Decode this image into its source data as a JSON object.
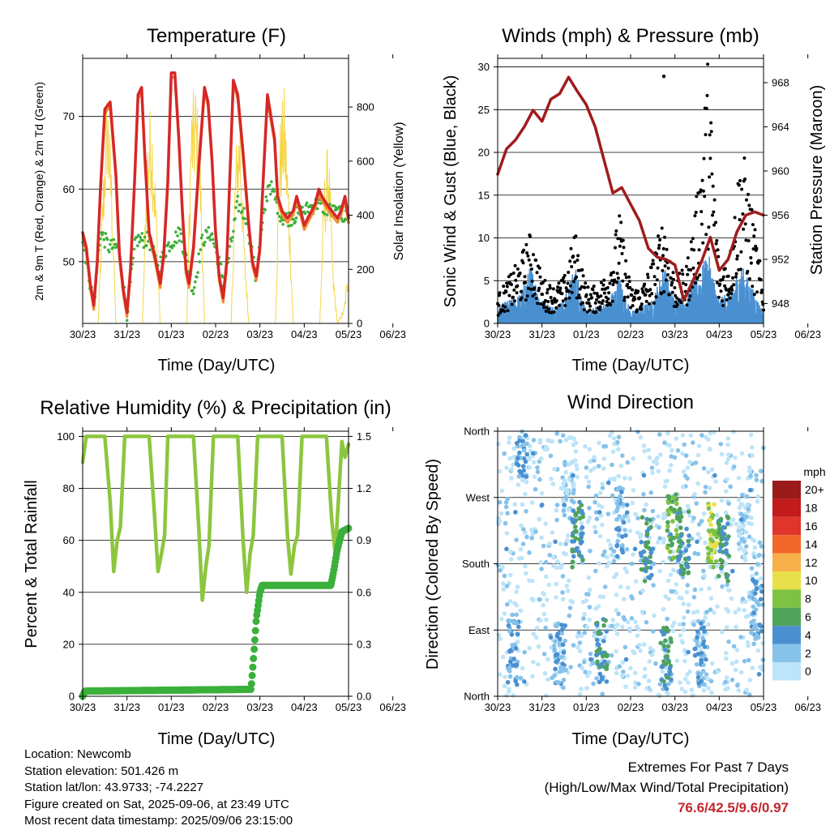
{
  "panels": {
    "temperature": {
      "title": "Temperature (F)",
      "ylabel_left": "2m & 9m T (Red, Orange) & 2m Td (Green)",
      "ylabel_right": "Solar Insolation (Yellow)",
      "xlabel": "Time (Day/UTC)"
    },
    "wind": {
      "title": "Winds (mph) & Pressure (mb)",
      "ylabel_left": "Sonic Wind & Gust (Blue, Black)",
      "ylabel_right": "Station Pressure (Maroon)",
      "xlabel": "Time (Day/UTC)"
    },
    "humidity": {
      "title": "Relative Humidity (%) & Precipitation (in)",
      "ylabel_left": "Percent & Total Rainfall",
      "xlabel": "Time (Day/UTC)"
    },
    "direction": {
      "title": "Wind Direction",
      "ylabel_left": "Direction (Colored By Speed)",
      "xlabel": "Time (Day/UTC)",
      "legend_title": "mph"
    }
  },
  "footer": {
    "location": "Location: Newcomb",
    "elevation": "Station elevation: 501.426 m",
    "latlon": "Station lat/lon: 43.9733; -74.2227",
    "created": "Figure created on Sat, 2025-09-06, at 23:49 UTC",
    "recent": "Most recent data timestamp: 2025/09/06 23:15:00"
  },
  "extremes": {
    "heading": "Extremes For Past 7 Days",
    "subheading": "(High/Low/Max Wind/Total Precipitation)",
    "value": "76.6/42.5/9.6/0.97"
  },
  "colors": {
    "temp2m": "#d62728",
    "temp9m": "#f28a30",
    "dewpoint": "#3bb03b",
    "solar": "#f5d547",
    "wind": "#4a90d0",
    "gust": "#000000",
    "pressure": "#a01c1c",
    "rh": "#8cc63f",
    "precip": "#3bb03b"
  },
  "chart_data": [
    {
      "type": "line",
      "title": "Temperature (F)",
      "xlabel": "Time (Day/UTC)",
      "ylabel": "2m & 9m T (Red, Orange) & 2m Td (Green)",
      "y2label": "Solar Insolation (Yellow)",
      "x_ticks": [
        "30/23",
        "31/23",
        "01/23",
        "02/23",
        "03/23",
        "04/23",
        "05/23",
        "06/23"
      ],
      "y_ticks": [
        50,
        60,
        70
      ],
      "y2_ticks": [
        0,
        200,
        400,
        600,
        800
      ],
      "ylim": [
        41.5,
        78
      ],
      "y2lim": [
        0,
        980
      ],
      "series": [
        {
          "name": "2m T",
          "color": "#d62728",
          "x": [
            0,
            0.08,
            0.17,
            0.25,
            0.33,
            0.4,
            0.5,
            0.62,
            0.75,
            0.83,
            0.92,
            1.0,
            1.08,
            1.17,
            1.25,
            1.33,
            1.4,
            1.5,
            1.62,
            1.75,
            1.83,
            1.92,
            2.0,
            2.08,
            2.17,
            2.25,
            2.33,
            2.4,
            2.5,
            2.62,
            2.75,
            2.83,
            2.92,
            3.0,
            3.08,
            3.17,
            3.25,
            3.33,
            3.4,
            3.5,
            3.62,
            3.75,
            3.83,
            3.92,
            4.0,
            4.08,
            4.17,
            4.25,
            4.33,
            4.4,
            4.5,
            4.62,
            4.75,
            4.83,
            4.92,
            5.0,
            5.08,
            5.17,
            5.25,
            5.33,
            5.4,
            5.5,
            5.62,
            5.75,
            5.83,
            5.92,
            6.0
          ],
          "y": [
            54,
            52,
            47,
            44,
            50,
            60,
            71,
            72,
            62,
            51,
            46,
            43,
            49,
            61,
            73,
            74,
            65,
            54,
            51,
            47,
            51,
            61,
            76,
            76,
            67,
            57,
            49,
            47,
            52,
            63,
            74,
            72,
            64,
            54,
            48,
            45,
            50,
            63,
            75,
            73,
            65,
            55,
            50,
            48,
            52,
            62,
            73,
            70,
            67,
            59,
            57,
            56,
            57,
            59,
            57,
            55,
            56,
            57,
            58,
            60,
            59,
            58,
            57,
            56,
            57,
            59,
            56
          ]
        },
        {
          "name": "2m Td",
          "color": "#3bb03b",
          "x": [
            0,
            0.17,
            0.25,
            0.4,
            0.6,
            0.8,
            1.0,
            1.2,
            1.5,
            1.7,
            1.9,
            2.2,
            2.5,
            2.7,
            2.9,
            3.2,
            3.5,
            3.7,
            3.9,
            4.2,
            4.5,
            4.7,
            5.0,
            5.3,
            5.6,
            6.0
          ],
          "y": [
            53,
            47,
            44,
            54,
            52,
            52,
            43,
            53,
            53,
            49,
            52,
            54,
            46,
            53,
            54,
            47,
            58,
            56,
            48,
            61,
            56,
            56,
            57,
            58,
            57,
            56
          ]
        },
        {
          "name": "Solar",
          "color": "#f5d547",
          "x": [
            0.35,
            0.45,
            0.55,
            0.65,
            0.75,
            1.35,
            1.45,
            1.55,
            1.65,
            1.75,
            2.35,
            2.45,
            2.55,
            2.65,
            2.75,
            3.35,
            3.45,
            3.55,
            3.65,
            3.75,
            4.35,
            4.45,
            4.55,
            4.65,
            4.75,
            5.35,
            5.45,
            5.55,
            5.65,
            5.75,
            5.9,
            6.0
          ],
          "y": [
            0,
            500,
            920,
            600,
            0,
            0,
            700,
            850,
            500,
            0,
            0,
            820,
            900,
            700,
            0,
            0,
            650,
            820,
            300,
            0,
            0,
            750,
            880,
            520,
            0,
            0,
            540,
            700,
            200,
            0,
            60,
            230
          ]
        }
      ]
    },
    {
      "type": "line",
      "title": "Winds (mph) & Pressure (mb)",
      "xlabel": "Time (Day/UTC)",
      "ylabel": "Sonic Wind & Gust (Blue, Black)",
      "y2label": "Station Pressure (Maroon)",
      "x_ticks": [
        "30/23",
        "31/23",
        "01/23",
        "02/23",
        "03/23",
        "04/23",
        "05/23",
        "06/23"
      ],
      "y_ticks": [
        0,
        5,
        10,
        15,
        20,
        25,
        30
      ],
      "y2_ticks": [
        948,
        952,
        956,
        960,
        964,
        968
      ],
      "ylim": [
        0,
        31
      ],
      "y2lim": [
        946.2,
        970.2
      ],
      "series": [
        {
          "name": "Pressure",
          "color": "#a01c1c",
          "x": [
            0,
            0.2,
            0.4,
            0.6,
            0.8,
            1.0,
            1.2,
            1.4,
            1.6,
            1.8,
            2.0,
            2.2,
            2.4,
            2.6,
            2.8,
            3.0,
            3.2,
            3.4,
            3.6,
            3.8,
            4.0,
            4.2,
            4.4,
            4.6,
            4.8,
            5.0,
            5.2,
            5.4,
            5.6,
            5.8,
            6.0
          ],
          "y": [
            959.7,
            962,
            962.8,
            964,
            965.5,
            964.5,
            966.5,
            967,
            968.5,
            967.2,
            966,
            964,
            961,
            958,
            958.5,
            957,
            955.5,
            953,
            952.2,
            952,
            951.5,
            948.3,
            950,
            951.8,
            954,
            951,
            952,
            954.5,
            956,
            956.3,
            956
          ]
        },
        {
          "name": "Wind",
          "color": "#4a90d0",
          "x": [
            0,
            0.25,
            0.5,
            0.75,
            1.0,
            1.25,
            1.5,
            1.75,
            2.0,
            2.25,
            2.5,
            2.75,
            3.0,
            3.25,
            3.5,
            3.75,
            4.0,
            4.25,
            4.5,
            4.75,
            5.0,
            5.25,
            5.5,
            5.75,
            6.0
          ],
          "y": [
            1.5,
            2,
            2.5,
            5,
            2,
            1.5,
            2,
            5,
            1,
            1.5,
            2,
            4,
            1,
            1.5,
            2,
            5,
            2,
            2.5,
            4,
            6,
            2,
            3,
            5,
            3,
            1
          ]
        },
        {
          "name": "Gust",
          "color": "#000000",
          "x": [
            0,
            0.25,
            0.5,
            0.75,
            1.0,
            1.25,
            1.5,
            1.75,
            2.0,
            2.25,
            2.5,
            2.75,
            3.0,
            3.25,
            3.5,
            3.75,
            4.0,
            4.25,
            4.5,
            4.75,
            5.0,
            5.25,
            5.5,
            5.75,
            6.0
          ],
          "y": [
            3,
            5,
            7,
            10,
            5,
            4,
            5,
            10,
            4,
            4,
            6,
            12,
            4,
            4,
            7,
            12,
            5,
            6,
            14,
            29,
            6,
            8,
            20,
            12,
            4
          ]
        }
      ]
    },
    {
      "type": "line",
      "title": "Relative Humidity (%) & Precipitation (in)",
      "xlabel": "Time (Day/UTC)",
      "ylabel": "Percent & Total Rainfall",
      "x_ticks": [
        "30/23",
        "31/23",
        "01/23",
        "02/23",
        "03/23",
        "04/23",
        "05/23",
        "06/23"
      ],
      "y_ticks": [
        0,
        20,
        40,
        60,
        80,
        100
      ],
      "y2_ticks": [
        0.0,
        0.3,
        0.6,
        0.9,
        1.2,
        1.5
      ],
      "ylim": [
        0,
        102
      ],
      "y2lim": [
        0,
        1.53
      ],
      "series": [
        {
          "name": "RH",
          "color": "#8cc63f",
          "x": [
            0,
            0.08,
            0.15,
            0.5,
            0.62,
            0.7,
            0.78,
            0.85,
            0.95,
            1.05,
            1.5,
            1.62,
            1.7,
            1.78,
            1.85,
            1.92,
            2.05,
            2.5,
            2.62,
            2.7,
            2.78,
            2.85,
            2.95,
            3.05,
            3.5,
            3.62,
            3.7,
            3.78,
            3.85,
            3.95,
            4.05,
            4.5,
            4.62,
            4.7,
            4.78,
            4.85,
            4.95,
            5.05,
            5.5,
            5.62,
            5.7,
            5.78,
            5.85,
            5.92,
            6.0
          ],
          "y": [
            90,
            100,
            100,
            100,
            75,
            48,
            60,
            65,
            100,
            100,
            100,
            70,
            48,
            55,
            62,
            100,
            100,
            100,
            65,
            37,
            50,
            58,
            100,
            100,
            100,
            60,
            40,
            55,
            62,
            100,
            100,
            100,
            62,
            47,
            58,
            62,
            100,
            100,
            100,
            68,
            55,
            78,
            98,
            92,
            97
          ]
        },
        {
          "name": "Precip",
          "color": "#3bb03b",
          "x": [
            0,
            0.05,
            3.8,
            3.85,
            3.92,
            4.0,
            4.05,
            5.6,
            5.65,
            5.75,
            5.85,
            6.0
          ],
          "y": [
            0,
            0.03,
            0.04,
            0.2,
            0.45,
            0.6,
            0.64,
            0.64,
            0.7,
            0.85,
            0.95,
            0.97
          ]
        }
      ]
    },
    {
      "type": "scatter",
      "title": "Wind Direction",
      "xlabel": "Time (Day/UTC)",
      "ylabel": "Direction (Colored By Speed)",
      "x_ticks": [
        "30/23",
        "31/23",
        "01/23",
        "02/23",
        "03/23",
        "04/23",
        "05/23",
        "06/23"
      ],
      "y_ticks": [
        "North",
        "East",
        "South",
        "West",
        "North"
      ],
      "ylim": [
        0,
        360
      ],
      "legend_title": "mph",
      "legend_labels": [
        "0",
        "2",
        "4",
        "6",
        "8",
        "10",
        "12",
        "14",
        "16",
        "18",
        "20+"
      ],
      "legend_colors": [
        "#bde4f8",
        "#86c2ea",
        "#4a90d0",
        "#4fa35a",
        "#7dc242",
        "#e8e04a",
        "#f8b04a",
        "#f2682a",
        "#e0352b",
        "#c11b1b",
        "#9b1b1b"
      ],
      "series": [
        {
          "name": "Direction",
          "x": [
            0.2,
            0.4,
            0.6,
            0.8,
            1.0,
            1.2,
            1.3,
            1.5,
            1.7,
            1.9,
            2.1,
            2.3,
            2.5,
            2.7,
            2.9,
            3.1,
            3.3,
            3.5,
            3.7,
            3.9,
            4.1,
            4.3,
            4.5,
            4.7,
            4.9,
            5.1,
            5.3,
            5.5,
            5.7,
            5.9
          ],
          "y": [
            200,
            250,
            20,
            330,
            260,
            80,
            210,
            260,
            300,
            210,
            50,
            250,
            290,
            190,
            50,
            200,
            300,
            200,
            40,
            220,
            190,
            60,
            210,
            50,
            300,
            220,
            170,
            240,
            280,
            30
          ]
        }
      ]
    }
  ]
}
